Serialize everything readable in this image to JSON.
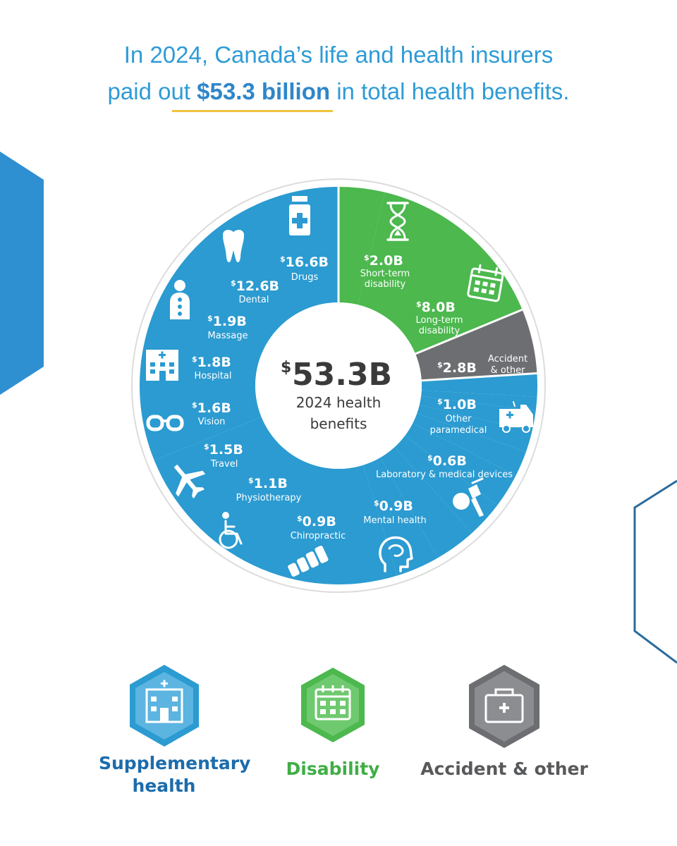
{
  "headline": {
    "line1": "In 2024, Canada’s life and health insurers",
    "line2_pre": "paid out ",
    "line2_bold": "$53.3 billion",
    "line2_post": " in total health benefits."
  },
  "colors": {
    "supplementary": "#2b9bd1",
    "disability": "#4cb84e",
    "accident": "#6d6e71",
    "headline": "#2e9bd6",
    "underline": "#f0c43c"
  },
  "chart_data": {
    "type": "pie",
    "total": {
      "sup": "$",
      "value": "53.3B",
      "line1": "2024 health",
      "line2": "benefits"
    },
    "slices": [
      {
        "id": "std",
        "category": "Disability",
        "name": [
          "Short-term",
          "disability"
        ],
        "value": 2.0,
        "label": "2.0B",
        "icon": "hourglass-icon"
      },
      {
        "id": "ltd",
        "category": "Disability",
        "name": [
          "Long-term",
          "disability"
        ],
        "value": 8.0,
        "label": "8.0B",
        "icon": "calendar-icon"
      },
      {
        "id": "acc",
        "category": "Accident & other",
        "name": [
          "Accident",
          "& other"
        ],
        "value": 2.8,
        "label": "2.8B",
        "icon": ""
      },
      {
        "id": "opm",
        "category": "Supplementary health",
        "name": [
          "Other",
          "paramedical"
        ],
        "value": 1.0,
        "label": "1.0B",
        "icon": "ambulance-icon"
      },
      {
        "id": "lab",
        "category": "Supplementary health",
        "name": [
          "Laboratory & medical devices"
        ],
        "value": 0.6,
        "label": "0.6B",
        "icon": "microscope-icon"
      },
      {
        "id": "mh",
        "category": "Supplementary health",
        "name": [
          "Mental health"
        ],
        "value": 0.9,
        "label": "0.9B",
        "icon": "brain-icon"
      },
      {
        "id": "chi",
        "category": "Supplementary health",
        "name": [
          "Chiropractic"
        ],
        "value": 0.9,
        "label": "0.9B",
        "icon": "spine-icon"
      },
      {
        "id": "phy",
        "category": "Supplementary health",
        "name": [
          "Physiotherapy"
        ],
        "value": 1.1,
        "label": "1.1B",
        "icon": "wheelchair-icon"
      },
      {
        "id": "tra",
        "category": "Supplementary health",
        "name": [
          "Travel"
        ],
        "value": 1.5,
        "label": "1.5B",
        "icon": "airplane-icon"
      },
      {
        "id": "vis",
        "category": "Supplementary health",
        "name": [
          "Vision"
        ],
        "value": 1.6,
        "label": "1.6B",
        "icon": "glasses-icon"
      },
      {
        "id": "hos",
        "category": "Supplementary health",
        "name": [
          "Hospital"
        ],
        "value": 1.8,
        "label": "1.8B",
        "icon": "hospital-icon"
      },
      {
        "id": "mas",
        "category": "Supplementary health",
        "name": [
          "Massage"
        ],
        "value": 1.9,
        "label": "1.9B",
        "icon": "massage-icon"
      },
      {
        "id": "den",
        "category": "Supplementary health",
        "name": [
          "Dental"
        ],
        "value": 12.6,
        "label": "12.6B",
        "icon": "tooth-icon"
      },
      {
        "id": "drg",
        "category": "Supplementary health",
        "name": [
          "Drugs"
        ],
        "value": 16.6,
        "label": "16.6B",
        "icon": "pill-bottle-icon"
      }
    ],
    "groups": [
      {
        "name": "Disability",
        "start_at": "top",
        "value": 10.0
      },
      {
        "name": "Accident & other",
        "value": 2.8
      },
      {
        "name": "Supplementary health",
        "value": 40.5
      }
    ]
  },
  "legend": [
    {
      "id": "supp",
      "lines": [
        "Supplementary",
        "health"
      ],
      "icon": "hospital-icon"
    },
    {
      "id": "dis",
      "lines": [
        "Disability"
      ],
      "icon": "calendar-icon"
    },
    {
      "id": "acc",
      "lines": [
        "Accident & other"
      ],
      "icon": "first-aid-kit-icon"
    }
  ]
}
